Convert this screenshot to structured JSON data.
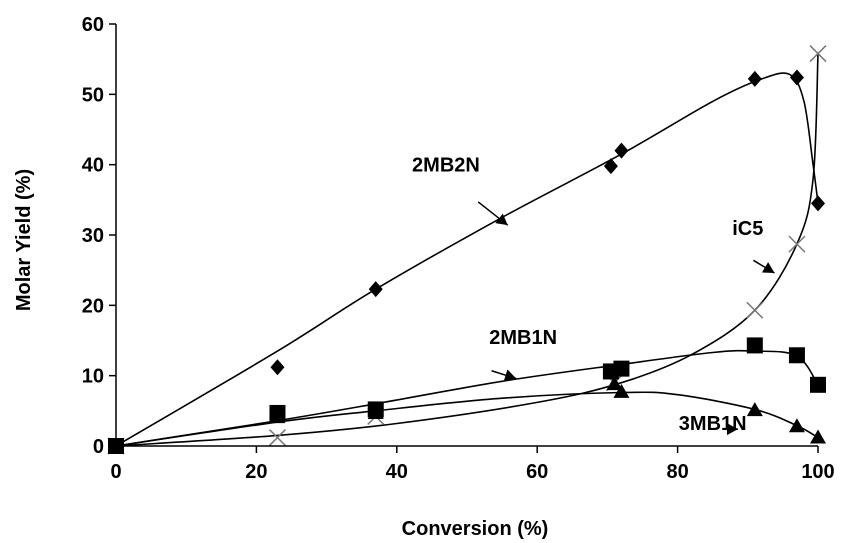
{
  "chart_data": {
    "type": "scatter",
    "title": "",
    "xlabel": "Conversion (%)",
    "ylabel": "Molar Yield (%)",
    "xlim": [
      0,
      100
    ],
    "ylim": [
      0,
      60
    ],
    "xticks": [
      0,
      20,
      40,
      60,
      80,
      100
    ],
    "yticks": [
      0,
      10,
      20,
      30,
      40,
      50,
      60
    ],
    "grid": false,
    "series": [
      {
        "name": "2MB2N",
        "marker": "diamond",
        "points": [
          [
            0,
            0
          ],
          [
            23,
            11.2
          ],
          [
            37,
            22.3
          ],
          [
            70.5,
            39.8
          ],
          [
            72,
            42
          ],
          [
            91,
            52.2
          ],
          [
            97,
            52.4
          ],
          [
            100,
            34.5
          ]
        ],
        "curve": [
          [
            0,
            0
          ],
          [
            23,
            13.5
          ],
          [
            37,
            22.3
          ],
          [
            55,
            32.5
          ],
          [
            72,
            41.5
          ],
          [
            85,
            49
          ],
          [
            92,
            52.2
          ],
          [
            96,
            52.8
          ],
          [
            98,
            49
          ],
          [
            99.3,
            40
          ],
          [
            100,
            34.5
          ]
        ]
      },
      {
        "name": "iC5",
        "marker": "cross",
        "points": [
          [
            0,
            0
          ],
          [
            23,
            1.2
          ],
          [
            37,
            4.2
          ],
          [
            71,
            9
          ],
          [
            91,
            19.3
          ],
          [
            97,
            28.7
          ],
          [
            100,
            55.8
          ]
        ],
        "curve": [
          [
            0,
            0
          ],
          [
            23,
            1.5
          ],
          [
            40,
            3.2
          ],
          [
            60,
            6.2
          ],
          [
            72,
            9
          ],
          [
            82,
            13
          ],
          [
            91,
            19.3
          ],
          [
            97,
            28.7
          ],
          [
            99.3,
            38
          ],
          [
            100,
            55.8
          ]
        ]
      },
      {
        "name": "2MB1N",
        "marker": "square",
        "points": [
          [
            0,
            0
          ],
          [
            23,
            4.7
          ],
          [
            37,
            5.2
          ],
          [
            70.5,
            10.6
          ],
          [
            72,
            11
          ],
          [
            91,
            14.3
          ],
          [
            97,
            12.9
          ],
          [
            100,
            8.7
          ]
        ],
        "curve": [
          [
            0,
            0
          ],
          [
            23,
            3.6
          ],
          [
            37,
            6
          ],
          [
            55,
            9.2
          ],
          [
            72,
            11.6
          ],
          [
            85,
            13.3
          ],
          [
            91,
            13.5
          ],
          [
            97,
            12.8
          ],
          [
            100,
            8.7
          ]
        ]
      },
      {
        "name": "3MB1N",
        "marker": "triangle",
        "points": [
          [
            0,
            0
          ],
          [
            23,
            4.1
          ],
          [
            37,
            4.7
          ],
          [
            71,
            8.8
          ],
          [
            72,
            7.7
          ],
          [
            91,
            5.1
          ],
          [
            97,
            2.8
          ],
          [
            100,
            1.2
          ]
        ],
        "curve": [
          [
            0,
            0
          ],
          [
            23,
            3.4
          ],
          [
            37,
            5
          ],
          [
            55,
            6.8
          ],
          [
            72,
            7.6
          ],
          [
            80,
            7.3
          ],
          [
            91,
            5.2
          ],
          [
            97,
            2.9
          ],
          [
            100,
            1.2
          ]
        ]
      }
    ],
    "annotations": [
      {
        "text": "2MB2N",
        "label_at": [
          47,
          39
        ],
        "arrow_from": [
          51.6,
          34.7
        ],
        "arrow_to": [
          55.8,
          31.4
        ]
      },
      {
        "text": "iC5",
        "label_at": [
          90,
          30
        ],
        "arrow_from": [
          90.8,
          26.4
        ],
        "arrow_to": [
          93.8,
          24.6
        ]
      },
      {
        "text": "2MB1N",
        "label_at": [
          58,
          14.5
        ],
        "arrow_from": [
          53.5,
          10.7
        ],
        "arrow_to": [
          57,
          9.6
        ]
      },
      {
        "text": "3MB1N",
        "label_at": [
          85,
          2.3
        ],
        "arrow_from": [
          86.4,
          2.4
        ],
        "arrow_to": [
          88.6,
          2.4
        ]
      }
    ]
  }
}
